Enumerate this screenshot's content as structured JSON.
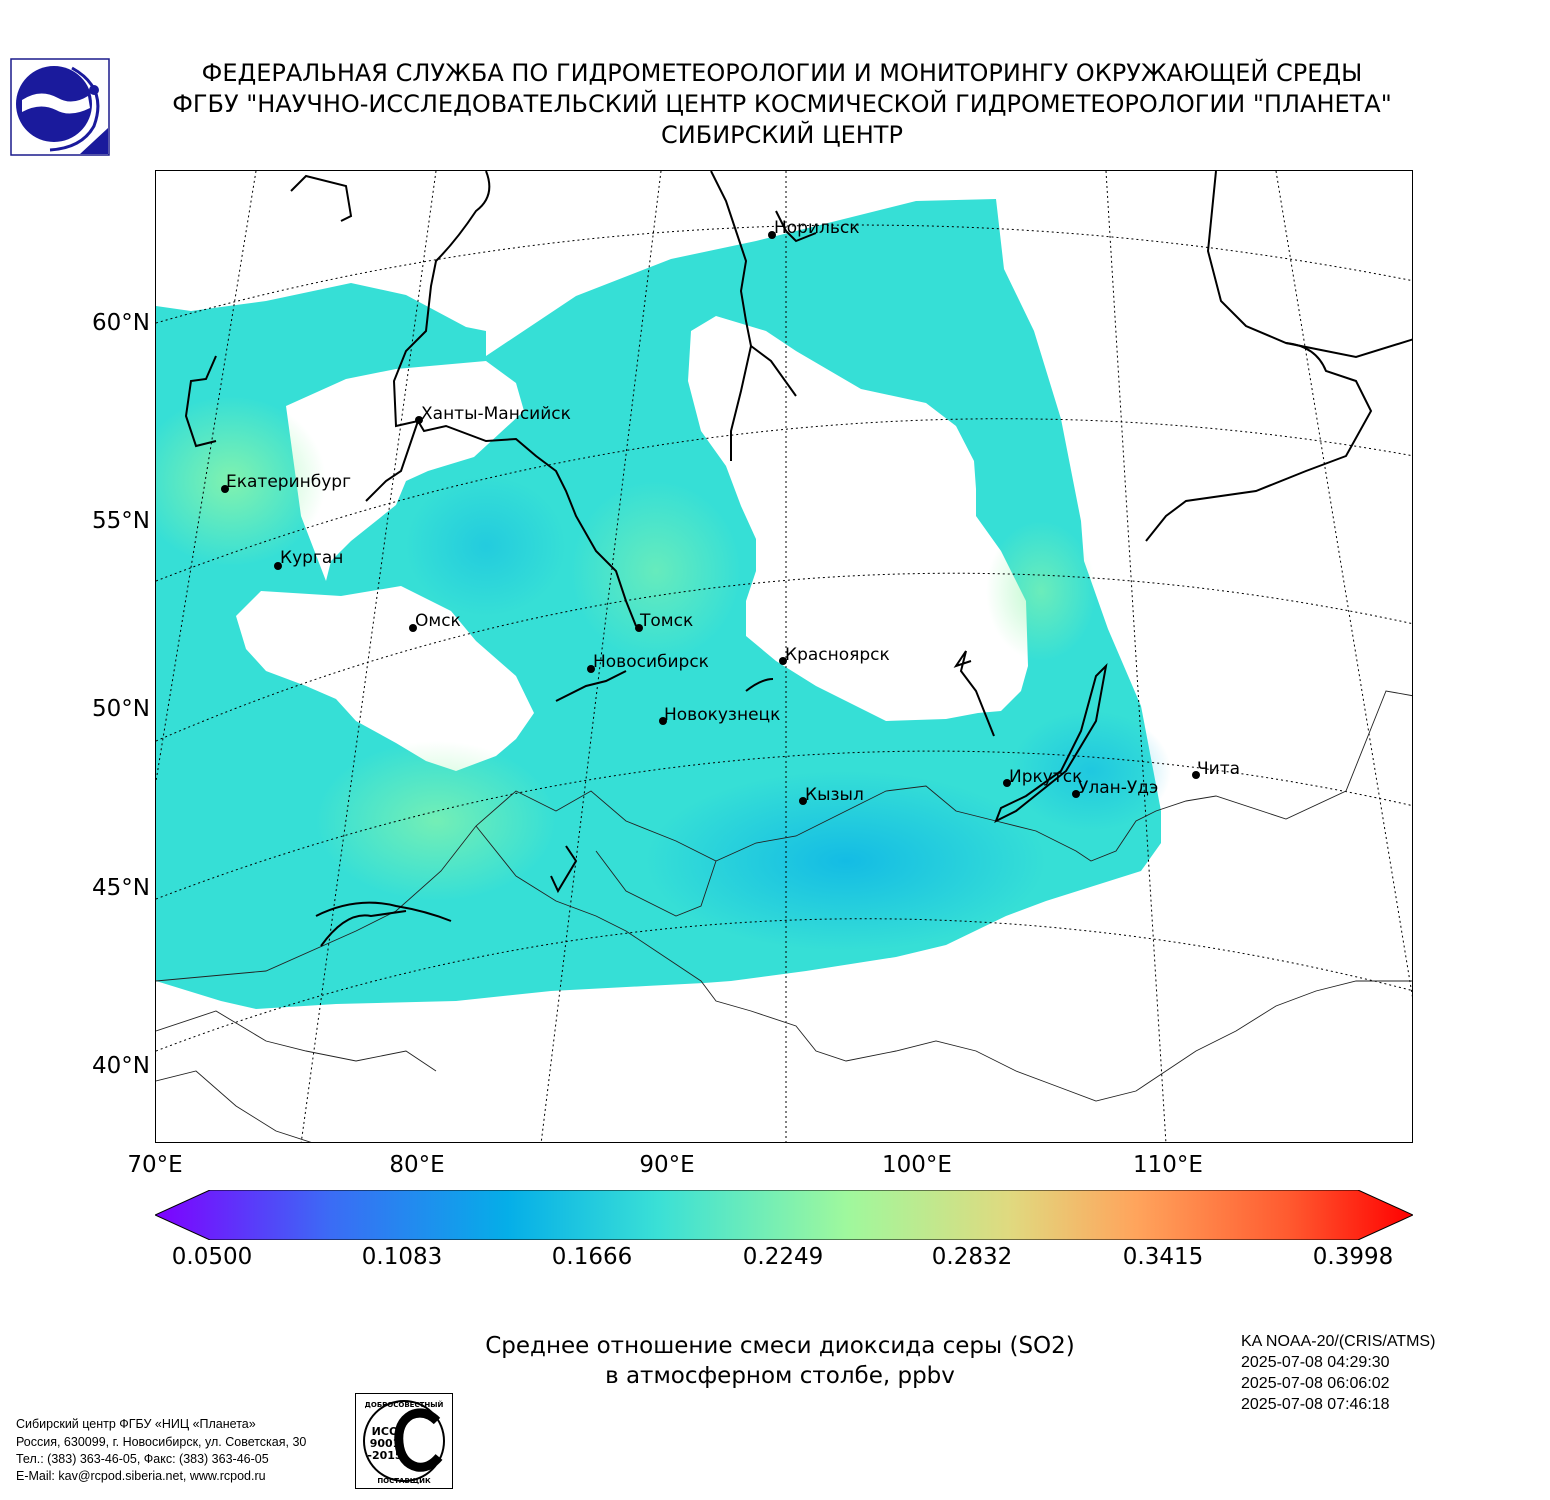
{
  "header": {
    "line1": "ФЕДЕРАЛЬНАЯ СЛУЖБА ПО ГИДРОМЕТЕОРОЛОГИИ И МОНИТОРИНГУ ОКРУЖАЮЩЕЙ СРЕДЫ",
    "line2": "ФГБУ \"НАУЧНО-ИССЛЕДОВАТЕЛЬСКИЙ ЦЕНТР КОСМИЧЕСКОЙ ГИДРОМЕТЕОРОЛОГИИ \"ПЛАНЕТА\"",
    "line3": "СИБИРСКИЙ ЦЕНТР"
  },
  "map": {
    "lat_labels": [
      "60°N",
      "55°N",
      "50°N",
      "45°N",
      "40°N"
    ],
    "lon_labels": [
      "70°E",
      "80°E",
      "90°E",
      "100°E",
      "110°E"
    ],
    "cities": [
      "Норильск",
      "Ханты-Мансийск",
      "Екатеринбург",
      "Курган",
      "Омск",
      "Томск",
      "Новосибирск",
      "Красноярск",
      "Новокузнецк",
      "Кызыл",
      "Иркутск",
      "Улан-Удэ",
      "Чита"
    ]
  },
  "colorbar": {
    "ticks": [
      "0.0500",
      "0.1083",
      "0.1666",
      "0.2249",
      "0.2832",
      "0.3415",
      "0.3998"
    ],
    "min": 0.05,
    "max": 0.3998,
    "colors": [
      "#7f00ff",
      "#3b6cf5",
      "#05aee8",
      "#3ae0d6",
      "#9ff89d",
      "#e0d97f",
      "#ffa45c",
      "#ff5b30",
      "#ff0000"
    ]
  },
  "title": {
    "line1": "Среднее отношение смеси диоксида серы (SO2)",
    "line2": "в атмосферном столбе, ppbv"
  },
  "satellite": {
    "name": "KA NOAA-20/(CRIS/ATMS)",
    "times": [
      "2025-07-08 04:29:30",
      "2025-07-08 06:06:02",
      "2025-07-08 07:46:18"
    ]
  },
  "footer": {
    "line1": "Сибирский центр ФГБУ «НИЦ «Планета»",
    "line2": "Россия, 630099, г. Новосибирск, ул. Советская, 30",
    "line3": "Тел.: (383) 363-46-05, Факс: (383) 363-46-05",
    "line4": "E-Mail: kav@rcpod.siberia.net, www.rcpod.ru"
  },
  "iso_logo": {
    "text_top": "ДОБРОСОВЕСТНЫЙ",
    "text_mid1": "ИСО",
    "text_mid2": "9001",
    "text_mid3": "-2015",
    "text_bottom": "ПОСТАВЩИК"
  }
}
